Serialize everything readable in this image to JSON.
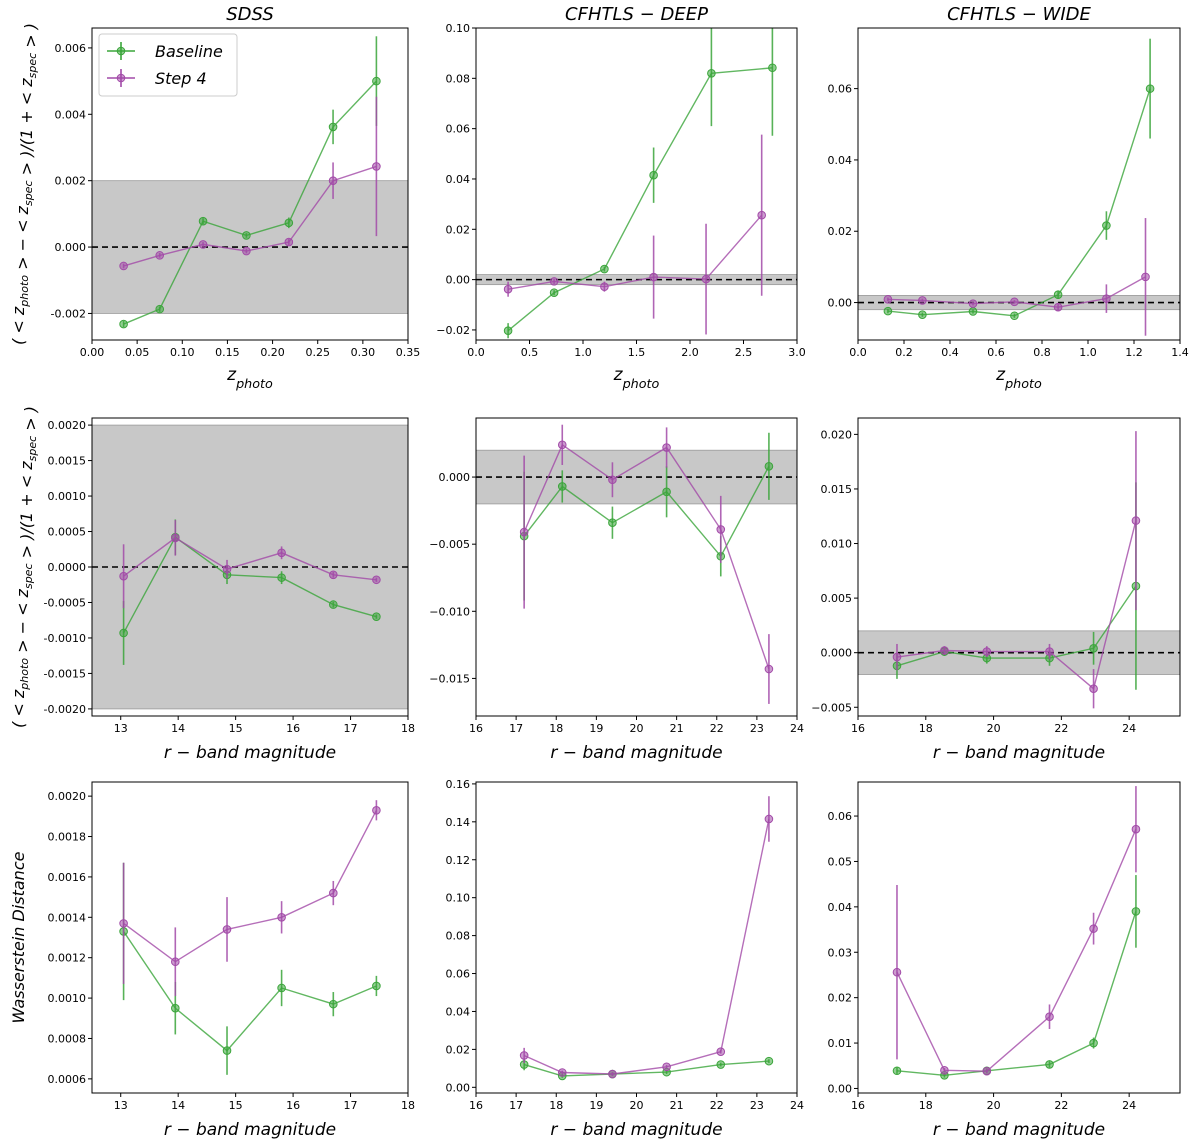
{
  "colors": {
    "baseline": "#3aa53a",
    "step4": "#a24aa8",
    "band": "#c8c8c8",
    "zero_line": "#000000"
  },
  "legend": {
    "entries": [
      "Baseline",
      "Step  4"
    ],
    "placement": "upper-left of first panel"
  },
  "row_labels": [
    "( < z_photo > − < z_spec > )/(1 + < z_spec > )",
    "( < z_photo > − < z_spec > )/(1 + < z_spec > )",
    "Wasserstein  Distance"
  ],
  "chart_data": [
    {
      "type": "line",
      "title": "SDSS",
      "xlabel": "z_photo",
      "ylabel": "( < z_photo > − < z_spec > )/(1 + < z_spec > )",
      "xlim": [
        0.0,
        0.35
      ],
      "ylim": [
        -0.0028,
        0.0066
      ],
      "xticks": [
        0.0,
        0.05,
        0.1,
        0.15,
        0.2,
        0.25,
        0.3,
        0.35
      ],
      "xtick_labels": [
        "0.00",
        "0.05",
        "0.10",
        "0.15",
        "0.20",
        "0.25",
        "0.30",
        "0.35"
      ],
      "yticks": [
        -0.002,
        0.0,
        0.002,
        0.004,
        0.006
      ],
      "ytick_labels": [
        "-0.002",
        "0.000",
        "0.002",
        "0.004",
        "0.006"
      ],
      "band": [
        -0.002,
        0.002
      ],
      "zero_line": true,
      "series": [
        {
          "name": "Baseline",
          "x": [
            0.035,
            0.075,
            0.123,
            0.171,
            0.218,
            0.267,
            0.315
          ],
          "y": [
            -0.00232,
            -0.00187,
            0.00078,
            0.00035,
            0.00073,
            0.00362,
            0.005
          ],
          "err": [
            9e-05,
            8e-05,
            9e-05,
            7e-05,
            0.00016,
            0.00052,
            0.00135
          ]
        },
        {
          "name": "Step  4",
          "x": [
            0.035,
            0.075,
            0.123,
            0.171,
            0.218,
            0.267,
            0.315
          ],
          "y": [
            -0.00057,
            -0.00025,
            8e-05,
            -0.00012,
            0.00015,
            0.002,
            0.00243
          ],
          "err": [
            7e-05,
            7e-05,
            7e-05,
            7e-05,
            9e-05,
            0.00055,
            0.0021
          ]
        }
      ]
    },
    {
      "type": "line",
      "title": "CFHTLS − DEEP",
      "xlabel": "z_photo",
      "ylabel": "",
      "xlim": [
        0.0,
        3.0
      ],
      "ylim": [
        -0.024,
        0.1
      ],
      "xticks": [
        0.0,
        0.5,
        1.0,
        1.5,
        2.0,
        2.5,
        3.0
      ],
      "xtick_labels": [
        "0.0",
        "0.5",
        "1.0",
        "1.5",
        "2.0",
        "2.5",
        "3.0"
      ],
      "yticks": [
        -0.02,
        0.0,
        0.02,
        0.04,
        0.06,
        0.08,
        0.1
      ],
      "ytick_labels": [
        "−0.02",
        "0.00",
        "0.02",
        "0.04",
        "0.06",
        "0.08",
        "0.10"
      ],
      "band": [
        -0.002,
        0.002
      ],
      "zero_line": true,
      "series": [
        {
          "name": "Baseline",
          "x": [
            0.3,
            0.73,
            1.2,
            1.66,
            2.2,
            2.77
          ],
          "y": [
            -0.0203,
            -0.0052,
            0.0042,
            0.0415,
            0.082,
            0.0842
          ],
          "err": [
            0.003,
            0.001,
            0.001,
            0.011,
            0.021,
            0.027
          ]
        },
        {
          "name": "Step  4",
          "x": [
            0.3,
            0.73,
            1.2,
            1.66,
            2.15,
            2.67
          ],
          "y": [
            -0.0038,
            -0.0007,
            -0.0028,
            0.001,
            0.0002,
            0.0256
          ],
          "err": [
            0.003,
            0.001,
            0.002,
            0.0165,
            0.022,
            0.032
          ]
        }
      ]
    },
    {
      "type": "line",
      "title": "CFHTLS − WIDE",
      "xlabel": "z_photo",
      "ylabel": "",
      "xlim": [
        0.0,
        1.4
      ],
      "ylim": [
        -0.0105,
        0.077
      ],
      "xticks": [
        0.0,
        0.2,
        0.4,
        0.6,
        0.8,
        1.0,
        1.2,
        1.4
      ],
      "xtick_labels": [
        "0.0",
        "0.2",
        "0.4",
        "0.6",
        "0.8",
        "1.0",
        "1.2",
        "1.4"
      ],
      "yticks": [
        0.0,
        0.02,
        0.04,
        0.06
      ],
      "ytick_labels": [
        "0.00",
        "0.02",
        "0.04",
        "0.06"
      ],
      "band": [
        -0.002,
        0.002
      ],
      "zero_line": true,
      "series": [
        {
          "name": "Baseline",
          "x": [
            0.13,
            0.28,
            0.5,
            0.68,
            0.87,
            1.08,
            1.27
          ],
          "y": [
            -0.0024,
            -0.0034,
            -0.0025,
            -0.0037,
            0.0022,
            0.0216,
            0.06
          ],
          "err": [
            0.0006,
            0.0006,
            0.0006,
            0.0006,
            0.0012,
            0.004,
            0.014
          ]
        },
        {
          "name": "Step  4",
          "x": [
            0.13,
            0.28,
            0.5,
            0.68,
            0.87,
            1.08,
            1.25
          ],
          "y": [
            0.0009,
            0.0006,
            -0.0003,
            0.0002,
            -0.0013,
            0.0011,
            0.0072
          ],
          "err": [
            0.0005,
            0.0005,
            0.0005,
            0.0005,
            0.001,
            0.004,
            0.0165
          ]
        }
      ]
    },
    {
      "type": "line",
      "title": "",
      "xlabel": "r − band  magnitude",
      "ylabel": "( < z_photo > − < z_spec > )/(1 + < z_spec > )",
      "xlim": [
        12.5,
        18.0
      ],
      "ylim": [
        -0.0021,
        0.0021
      ],
      "xticks": [
        13,
        14,
        15,
        16,
        17,
        18
      ],
      "xtick_labels": [
        "13",
        "14",
        "15",
        "16",
        "17",
        "18"
      ],
      "yticks": [
        -0.002,
        -0.0015,
        -0.001,
        -0.0005,
        0.0,
        0.0005,
        0.001,
        0.0015,
        0.002
      ],
      "ytick_labels": [
        "-0.0020",
        "-0.0015",
        "-0.0010",
        "-0.0005",
        "0.0000",
        "0.0005",
        "0.0010",
        "0.0015",
        "0.0020"
      ],
      "band": [
        -0.002,
        0.002
      ],
      "zero_line": true,
      "series": [
        {
          "name": "Baseline",
          "x": [
            13.05,
            13.95,
            14.85,
            15.8,
            16.7,
            17.45
          ],
          "y": [
            -0.00093,
            0.00042,
            -0.00011,
            -0.00015,
            -0.00053,
            -0.0007
          ],
          "err": [
            0.00045,
            0.00025,
            0.00013,
            9e-05,
            4e-05,
            3e-05
          ]
        },
        {
          "name": "Step  4",
          "x": [
            13.05,
            13.95,
            14.85,
            15.8,
            16.7,
            17.45
          ],
          "y": [
            -0.00013,
            0.00041,
            -3e-05,
            0.0002,
            -0.00011,
            -0.00018
          ],
          "err": [
            0.00045,
            0.00025,
            0.00013,
            9e-05,
            4e-05,
            3e-05
          ]
        }
      ]
    },
    {
      "type": "line",
      "title": "",
      "xlabel": "r − band  magnitude",
      "ylabel": "",
      "xlim": [
        16.0,
        24.0
      ],
      "ylim": [
        -0.0178,
        0.0044
      ],
      "xticks": [
        16,
        17,
        18,
        19,
        20,
        21,
        22,
        23,
        24
      ],
      "xtick_labels": [
        "16",
        "17",
        "18",
        "19",
        "20",
        "21",
        "22",
        "23",
        "24"
      ],
      "yticks": [
        -0.015,
        -0.01,
        -0.005,
        0.0
      ],
      "ytick_labels": [
        "−0.015",
        "−0.010",
        "−0.005",
        "0.000"
      ],
      "band": [
        -0.002,
        0.002
      ],
      "zero_line": true,
      "series": [
        {
          "name": "Baseline",
          "x": [
            17.2,
            18.15,
            19.4,
            20.75,
            22.1,
            23.3
          ],
          "y": [
            -0.0044,
            -0.0007,
            -0.0034,
            -0.0011,
            -0.0059,
            0.0008
          ],
          "err": [
            0.0048,
            0.0012,
            0.0012,
            0.0019,
            0.0015,
            0.0025
          ]
        },
        {
          "name": "Step  4",
          "x": [
            17.2,
            18.15,
            19.4,
            20.75,
            22.1,
            23.3
          ],
          "y": [
            -0.0041,
            0.0024,
            -0.0002,
            0.0022,
            -0.0039,
            -0.0143
          ],
          "err": [
            0.0057,
            0.0015,
            0.0013,
            0.0015,
            0.0025,
            0.0026
          ]
        }
      ]
    },
    {
      "type": "line",
      "title": "",
      "xlabel": "r − band  magnitude",
      "ylabel": "",
      "xlim": [
        16.0,
        25.5
      ],
      "ylim": [
        -0.0058,
        0.0215
      ],
      "xticks": [
        16,
        18,
        20,
        22,
        24
      ],
      "xtick_labels": [
        "16",
        "18",
        "20",
        "22",
        "24"
      ],
      "yticks": [
        -0.005,
        0.0,
        0.005,
        0.01,
        0.015,
        0.02
      ],
      "ytick_labels": [
        "−0.005",
        "0.000",
        "0.005",
        "0.010",
        "0.015",
        "0.020"
      ],
      "band": [
        -0.002,
        0.002
      ],
      "zero_line": true,
      "series": [
        {
          "name": "Baseline",
          "x": [
            17.15,
            18.55,
            19.8,
            21.65,
            22.95,
            24.2
          ],
          "y": [
            -0.0012,
            0.0001,
            -0.0005,
            -0.0005,
            0.0004,
            0.0061
          ],
          "err": [
            0.0012,
            0.0004,
            0.0005,
            0.0007,
            0.0015,
            0.0095
          ]
        },
        {
          "name": "Step  4",
          "x": [
            17.15,
            18.55,
            19.8,
            21.65,
            22.95,
            24.2
          ],
          "y": [
            -0.0004,
            0.0002,
            0.0001,
            0.0001,
            -0.0033,
            0.0121
          ],
          "err": [
            0.0012,
            0.0004,
            0.0005,
            0.0007,
            0.0018,
            0.0082
          ]
        }
      ]
    },
    {
      "type": "line",
      "title": "",
      "xlabel": "r − band  magnitude",
      "ylabel": "Wasserstein  Distance",
      "xlim": [
        12.5,
        18.0
      ],
      "ylim": [
        0.00053,
        0.00207
      ],
      "xticks": [
        13,
        14,
        15,
        16,
        17,
        18
      ],
      "xtick_labels": [
        "13",
        "14",
        "15",
        "16",
        "17",
        "18"
      ],
      "yticks": [
        0.0006,
        0.0008,
        0.001,
        0.0012,
        0.0014,
        0.0016,
        0.0018,
        0.002
      ],
      "ytick_labels": [
        "0.0006",
        "0.0008",
        "0.0010",
        "0.0012",
        "0.0014",
        "0.0016",
        "0.0018",
        "0.0020"
      ],
      "band": null,
      "zero_line": false,
      "series": [
        {
          "name": "Baseline",
          "x": [
            13.05,
            13.95,
            14.85,
            15.8,
            16.7,
            17.45
          ],
          "y": [
            0.00133,
            0.00095,
            0.00074,
            0.00105,
            0.00097,
            0.00106
          ],
          "err": [
            0.00034,
            0.00013,
            0.00012,
            9e-05,
            6e-05,
            5e-05
          ]
        },
        {
          "name": "Step  4",
          "x": [
            13.05,
            13.95,
            14.85,
            15.8,
            16.7,
            17.45
          ],
          "y": [
            0.00137,
            0.00118,
            0.00134,
            0.0014,
            0.00152,
            0.00193
          ],
          "err": [
            0.0003,
            0.00017,
            0.00016,
            8e-05,
            6e-05,
            5e-05
          ]
        }
      ]
    },
    {
      "type": "line",
      "title": "",
      "xlabel": "r − band  magnitude",
      "ylabel": "",
      "xlim": [
        16.0,
        24.0
      ],
      "ylim": [
        -0.003,
        0.161
      ],
      "xticks": [
        16,
        17,
        18,
        19,
        20,
        21,
        22,
        23,
        24
      ],
      "xtick_labels": [
        "16",
        "17",
        "18",
        "19",
        "20",
        "21",
        "22",
        "23",
        "24"
      ],
      "yticks": [
        0.0,
        0.02,
        0.04,
        0.06,
        0.08,
        0.1,
        0.12,
        0.14,
        0.16
      ],
      "ytick_labels": [
        "0.00",
        "0.02",
        "0.04",
        "0.06",
        "0.08",
        "0.10",
        "0.12",
        "0.14",
        "0.16"
      ],
      "band": null,
      "zero_line": false,
      "series": [
        {
          "name": "Baseline",
          "x": [
            17.2,
            18.15,
            19.4,
            20.75,
            22.1,
            23.3
          ],
          "y": [
            0.012,
            0.006,
            0.007,
            0.008,
            0.012,
            0.0138
          ],
          "err": [
            0.003,
            0.001,
            0.001,
            0.001,
            0.001,
            0.001
          ]
        },
        {
          "name": "Step  4",
          "x": [
            17.2,
            18.15,
            19.4,
            20.75,
            22.1,
            23.3
          ],
          "y": [
            0.0168,
            0.0078,
            0.007,
            0.0108,
            0.0188,
            0.1415
          ],
          "err": [
            0.004,
            0.001,
            0.001,
            0.001,
            0.001,
            0.012
          ]
        }
      ]
    },
    {
      "type": "line",
      "title": "",
      "xlabel": "r − band  magnitude",
      "ylabel": "",
      "xlim": [
        16.0,
        25.5
      ],
      "ylim": [
        -0.001,
        0.0675
      ],
      "xticks": [
        16,
        18,
        20,
        22,
        24
      ],
      "xtick_labels": [
        "16",
        "18",
        "20",
        "22",
        "24"
      ],
      "yticks": [
        0.0,
        0.01,
        0.02,
        0.03,
        0.04,
        0.05,
        0.06
      ],
      "ytick_labels": [
        "0.00",
        "0.01",
        "0.02",
        "0.03",
        "0.04",
        "0.05",
        "0.06"
      ],
      "band": null,
      "zero_line": false,
      "series": [
        {
          "name": "Baseline",
          "x": [
            17.15,
            18.55,
            19.8,
            21.65,
            22.95,
            24.2
          ],
          "y": [
            0.0039,
            0.0029,
            0.0039,
            0.0053,
            0.01,
            0.039
          ],
          "err": [
            0.0007,
            0.0005,
            0.0005,
            0.0007,
            0.0012,
            0.008
          ]
        },
        {
          "name": "Step  4",
          "x": [
            17.15,
            18.55,
            19.8,
            21.65,
            22.95,
            24.2
          ],
          "y": [
            0.0256,
            0.004,
            0.0038,
            0.0158,
            0.0352,
            0.0571
          ],
          "err": [
            0.0192,
            0.0005,
            0.0005,
            0.0027,
            0.0035,
            0.0095
          ]
        }
      ]
    }
  ]
}
